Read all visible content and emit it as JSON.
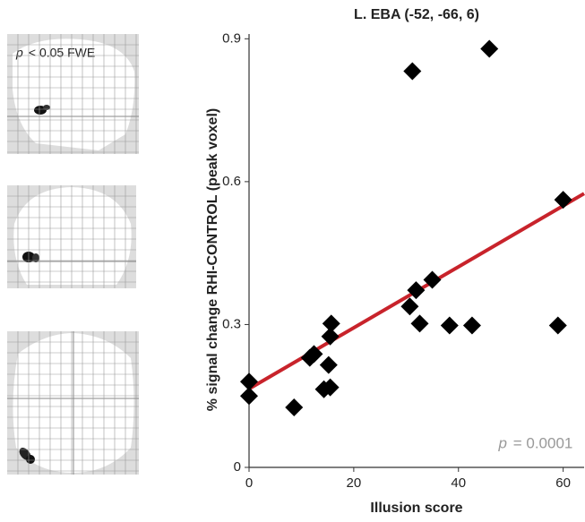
{
  "chart_data": {
    "type": "scatter",
    "title": "L. EBA (-52, -66, 6)",
    "x_label": "Illusion score",
    "y_label": "% signal change RHI-CONTROL (peak voxel)",
    "x": [
      0,
      0,
      8.6,
      11.6,
      12.4,
      14.3,
      15.5,
      15.2,
      15.5,
      15.7,
      30.7,
      31.9,
      32.6,
      35,
      31.2,
      45.9,
      38.3,
      42.6,
      59,
      60
    ],
    "values": [
      0.18,
      0.15,
      0.126,
      0.23,
      0.238,
      0.164,
      0.168,
      0.215,
      0.275,
      0.302,
      0.338,
      0.372,
      0.302,
      0.394,
      0.832,
      0.879,
      0.298,
      0.298,
      0.298,
      0.562
    ],
    "color": "#000000",
    "fit_line": {
      "x": [
        0,
        64
      ],
      "values": [
        0.165,
        0.575
      ],
      "color": "#c8232b"
    },
    "xlim": [
      0,
      64
    ],
    "ylim": [
      0,
      0.91
    ],
    "xticks": [
      0,
      20,
      40,
      60
    ],
    "yticks": [
      0,
      0.3,
      0.6,
      {
        "value": 0.9,
        "label": "0.9"
      }
    ],
    "annotation": {
      "italic": "p",
      "text": " = 0.0001"
    },
    "brain_label": {
      "italic": "p",
      "text": " < 0.05 FWE"
    }
  }
}
